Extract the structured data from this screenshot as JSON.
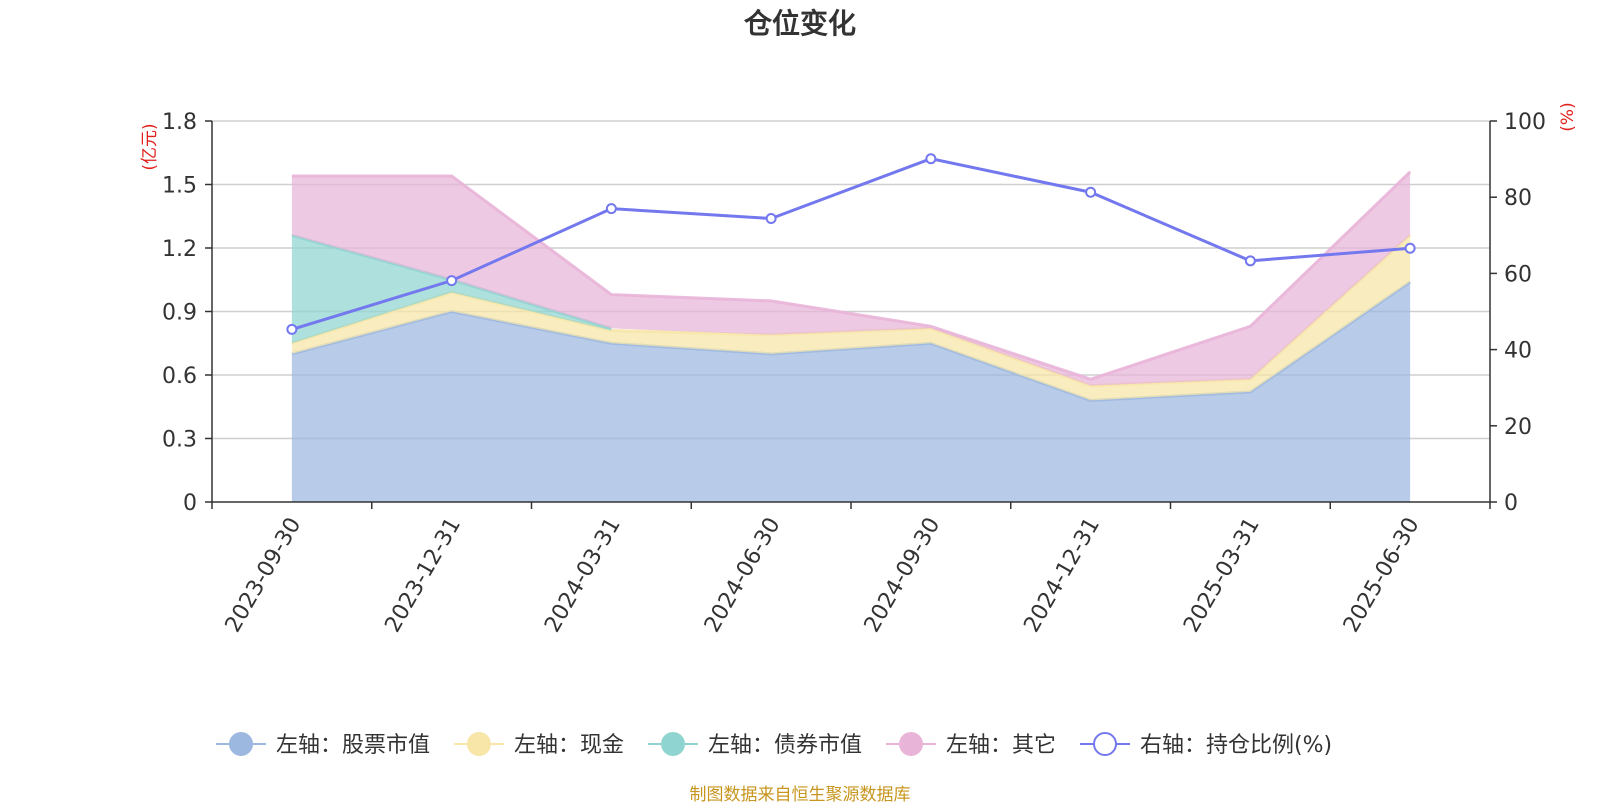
{
  "chart_data": {
    "type": "area",
    "title": "仓位变化",
    "categories": [
      "2023-09-30",
      "2023-12-31",
      "2024-03-31",
      "2024-06-30",
      "2024-09-30",
      "2024-12-31",
      "2025-03-31",
      "2025-06-30"
    ],
    "left_axis": {
      "label": "(亿元)",
      "ticks": [
        "0",
        "0.3",
        "0.6",
        "0.9",
        "1.2",
        "1.5",
        "1.8"
      ],
      "ylim": [
        0,
        1.8
      ]
    },
    "right_axis": {
      "label": "(%)",
      "ticks": [
        "0",
        "20",
        "40",
        "60",
        "80",
        "100"
      ],
      "ylim": [
        0,
        100
      ]
    },
    "series": [
      {
        "name": "左轴：股票市值",
        "axis": "left",
        "stacked": true,
        "color": "#9db8e0",
        "values": [
          0.7,
          0.9,
          0.75,
          0.7,
          0.75,
          0.48,
          0.52,
          1.04
        ]
      },
      {
        "name": "左轴：现金",
        "axis": "left",
        "stacked": true,
        "color": "#f7e6a8",
        "values": [
          0.05,
          0.09,
          0.06,
          0.09,
          0.07,
          0.07,
          0.06,
          0.22
        ]
      },
      {
        "name": "左轴：债券市值",
        "axis": "left",
        "stacked": true,
        "color": "#8fd4d0",
        "values": [
          0.51,
          0.06,
          0.01,
          null,
          null,
          null,
          null,
          null
        ]
      },
      {
        "name": "左轴：其它",
        "axis": "left",
        "stacked": true,
        "color": "#e8b4d8",
        "values": [
          0.28,
          0.49,
          0.16,
          0.16,
          0.01,
          0.03,
          0.25,
          0.3
        ]
      },
      {
        "name": "右轴：持仓比例(%)",
        "axis": "right",
        "type": "line",
        "color": "#7478ee",
        "values": [
          45.3,
          58.1,
          77.0,
          74.4,
          90.1,
          81.3,
          63.3,
          66.6
        ]
      }
    ],
    "legend_position": "bottom",
    "grid": true
  },
  "source_note": "制图数据来自恒生聚源数据库"
}
